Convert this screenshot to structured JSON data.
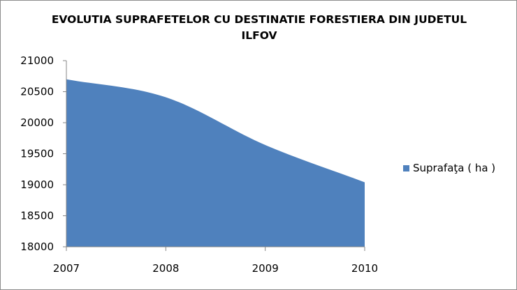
{
  "chart_data": {
    "type": "area",
    "title": "EVOLUTIA SUPRAFETELOR CU DESTINATIE FORESTIERA DIN JUDETUL ILFOV",
    "xlabel": "",
    "ylabel": "",
    "x_ticks": [
      "2007",
      "2008",
      "2009",
      "2010"
    ],
    "y_ticks": [
      "18000",
      "18500",
      "19000",
      "19500",
      "20000",
      "20500",
      "21000"
    ],
    "ylim": [
      18000,
      21000
    ],
    "xlim": [
      2007,
      2010
    ],
    "grid": false,
    "legend_position": "right",
    "series": [
      {
        "name": "Suprafaţa ( ha )",
        "color": "#4f81bd",
        "x": [
          2007,
          2008,
          2009,
          2010
        ],
        "values": [
          20700,
          20410,
          19640,
          19040
        ]
      }
    ]
  }
}
